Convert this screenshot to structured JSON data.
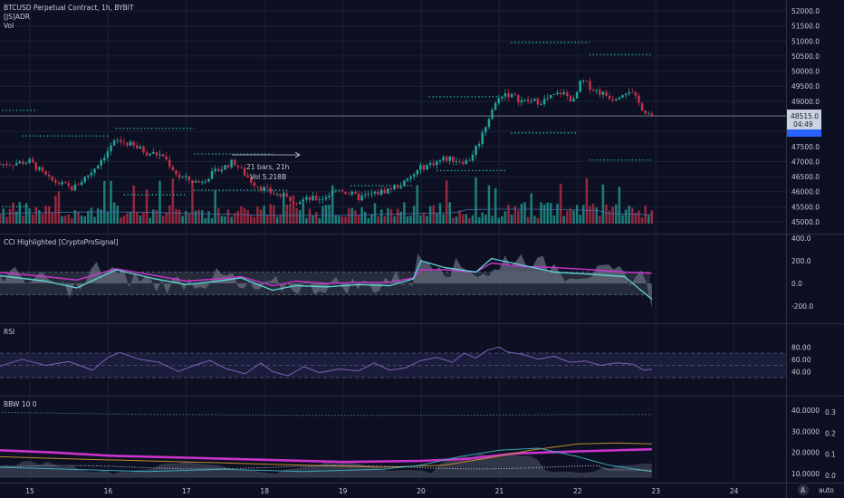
{
  "header": {
    "symbol_line": "BTCUSD Perpetual Contract, 1h, BYBIT",
    "indicator_1": "[JS]ADR",
    "indicator_2": "Vol"
  },
  "colors": {
    "background": "#0c1022",
    "grid": "#1b2233",
    "bull": "#22a39a",
    "bear": "#c0304a",
    "purple": "#cc33cc",
    "cyan": "#5fd1d6",
    "rsi_line": "#7e62b8",
    "adr_dots": "#2bbbb0",
    "price_tag_bg": "#cbd3e0",
    "price_tag_border": "#2962ff"
  },
  "chart_data": [
    {
      "type": "candlestick",
      "name": "BTCUSD Perpetual Contract, 1h, BYBIT",
      "y_ticks": [
        "52000.0",
        "51500.0",
        "51000.0",
        "50500.0",
        "50000.0",
        "49500.0",
        "49000.0",
        "48500.0",
        "48000.0",
        "47500.0",
        "47000.0",
        "46500.0",
        "46000.0",
        "45500.0",
        "45000.0"
      ],
      "ylim": [
        44800,
        52200
      ],
      "x_ticks": [
        "15",
        "16",
        "17",
        "18",
        "19",
        "20",
        "21",
        "22",
        "23",
        "24"
      ],
      "current_price": "48515.0",
      "countdown": "04:49",
      "annotations": [
        "21 bars, 21h",
        "Vol 5.218B"
      ],
      "price_path": [
        {
          "d": 14.6,
          "p": 46900
        },
        {
          "d": 15.0,
          "p": 47000
        },
        {
          "d": 15.25,
          "p": 46400
        },
        {
          "d": 15.55,
          "p": 46100
        },
        {
          "d": 15.8,
          "p": 46700
        },
        {
          "d": 16.1,
          "p": 47700
        },
        {
          "d": 16.25,
          "p": 47600
        },
        {
          "d": 16.5,
          "p": 47300
        },
        {
          "d": 16.7,
          "p": 47200
        },
        {
          "d": 16.9,
          "p": 46500
        },
        {
          "d": 17.15,
          "p": 46300
        },
        {
          "d": 17.4,
          "p": 46700
        },
        {
          "d": 17.6,
          "p": 47000
        },
        {
          "d": 17.85,
          "p": 46300
        },
        {
          "d": 18.05,
          "p": 46000
        },
        {
          "d": 18.4,
          "p": 45700
        },
        {
          "d": 18.75,
          "p": 45800
        },
        {
          "d": 18.95,
          "p": 46100
        },
        {
          "d": 19.2,
          "p": 45800
        },
        {
          "d": 19.5,
          "p": 46000
        },
        {
          "d": 19.8,
          "p": 46300
        },
        {
          "d": 20.0,
          "p": 46800
        },
        {
          "d": 20.3,
          "p": 47100
        },
        {
          "d": 20.6,
          "p": 47000
        },
        {
          "d": 20.75,
          "p": 47700
        },
        {
          "d": 20.9,
          "p": 48700
        },
        {
          "d": 21.05,
          "p": 49300
        },
        {
          "d": 21.3,
          "p": 49000
        },
        {
          "d": 21.55,
          "p": 49000
        },
        {
          "d": 21.8,
          "p": 49300
        },
        {
          "d": 21.95,
          "p": 49000
        },
        {
          "d": 22.05,
          "p": 49700
        },
        {
          "d": 22.2,
          "p": 49400
        },
        {
          "d": 22.45,
          "p": 49100
        },
        {
          "d": 22.65,
          "p": 49400
        },
        {
          "d": 22.85,
          "p": 48700
        },
        {
          "d": 22.95,
          "p": 48515
        }
      ],
      "adr_levels": [
        {
          "d0": 14.6,
          "d1": 15.1,
          "p": 48700
        },
        {
          "d0": 14.9,
          "d1": 16.0,
          "p": 47850
        },
        {
          "d0": 14.6,
          "d1": 15.0,
          "p": 45500
        },
        {
          "d0": 16.1,
          "d1": 17.1,
          "p": 48100
        },
        {
          "d0": 16.2,
          "d1": 17.0,
          "p": 45900
        },
        {
          "d0": 17.1,
          "d1": 18.1,
          "p": 47250
        },
        {
          "d0": 17.1,
          "d1": 18.3,
          "p": 46050
        },
        {
          "d0": 19.1,
          "d1": 19.9,
          "p": 46200
        },
        {
          "d0": 20.1,
          "d1": 21.0,
          "p": 49150
        },
        {
          "d0": 20.2,
          "d1": 21.1,
          "p": 46700
        },
        {
          "d0": 21.15,
          "d1": 22.15,
          "p": 50950
        },
        {
          "d0": 21.15,
          "d1": 22.0,
          "p": 47950
        },
        {
          "d0": 22.15,
          "d1": 22.95,
          "p": 50550
        },
        {
          "d0": 22.15,
          "d1": 22.95,
          "p": 47050
        }
      ]
    },
    {
      "type": "line",
      "name": "CCI Highlighted [CryptoProSignal]",
      "y_ticks": [
        "400.0",
        "200.0",
        "0.0",
        "-200.0"
      ],
      "ylim": [
        -300,
        420
      ],
      "band": [
        -100,
        100
      ],
      "series": [
        {
          "color": "#cc33cc",
          "x": [
            14.6,
            15.2,
            15.6,
            16.1,
            16.6,
            17.0,
            17.4,
            17.7,
            18.1,
            18.4,
            18.8,
            19.2,
            19.6,
            19.9,
            20.0,
            20.3,
            20.7,
            20.9,
            21.3,
            21.7,
            22.2,
            22.6,
            22.95
          ],
          "y": [
            100,
            60,
            30,
            130,
            70,
            20,
            40,
            60,
            -20,
            20,
            0,
            10,
            10,
            50,
            120,
            120,
            100,
            180,
            150,
            140,
            120,
            100,
            90
          ]
        },
        {
          "color": "#5fd1d6",
          "x": [
            14.6,
            15.2,
            15.6,
            16.1,
            16.6,
            17.0,
            17.4,
            17.7,
            18.1,
            18.4,
            18.8,
            19.2,
            19.6,
            19.9,
            20.0,
            20.3,
            20.7,
            20.9,
            21.3,
            21.7,
            22.2,
            22.6,
            22.95
          ],
          "y": [
            70,
            20,
            -40,
            120,
            40,
            -10,
            20,
            50,
            -60,
            -20,
            -30,
            -10,
            -20,
            40,
            200,
            140,
            100,
            220,
            160,
            100,
            80,
            60,
            -140
          ]
        }
      ]
    },
    {
      "type": "line",
      "name": "RSI",
      "y_ticks": [
        "80.00",
        "60.00",
        "40.00"
      ],
      "ylim": [
        28,
        84
      ],
      "band": [
        30,
        70
      ],
      "mid": 50,
      "series": [
        {
          "color": "#7e62b8",
          "x": [
            14.6,
            14.9,
            15.2,
            15.5,
            15.8,
            16.0,
            16.15,
            16.4,
            16.65,
            16.9,
            17.1,
            17.3,
            17.5,
            17.75,
            17.95,
            18.1,
            18.3,
            18.5,
            18.7,
            18.95,
            19.2,
            19.4,
            19.6,
            19.8,
            20.0,
            20.2,
            20.4,
            20.55,
            20.7,
            20.85,
            21.0,
            21.1,
            21.3,
            21.5,
            21.7,
            21.9,
            22.1,
            22.3,
            22.5,
            22.7,
            22.85,
            22.95
          ],
          "y": [
            48,
            60,
            50,
            56,
            42,
            63,
            71,
            60,
            55,
            40,
            50,
            58,
            45,
            36,
            54,
            40,
            33,
            48,
            38,
            44,
            41,
            54,
            42,
            46,
            58,
            63,
            55,
            70,
            62,
            75,
            80,
            72,
            68,
            60,
            65,
            55,
            57,
            50,
            54,
            52,
            42,
            44
          ]
        }
      ]
    },
    {
      "type": "line",
      "name": "BBW 10 0",
      "y_ticks_left": [
        "40.0000",
        "30.0000",
        "20.0000",
        "10.0000"
      ],
      "y_ticks_right": [
        "0.3",
        "0.2",
        "0.1",
        "0.0"
      ],
      "ylim": [
        7,
        44
      ],
      "series": [
        {
          "color": "#cc33cc",
          "x": [
            14.6,
            15.3,
            16.0,
            17.0,
            18.0,
            19.0,
            20.0,
            20.6,
            21.2,
            22.0,
            22.95
          ],
          "y": [
            21,
            20,
            18.5,
            17.5,
            16.5,
            15.5,
            16,
            17,
            19.5,
            20.5,
            21.5
          ]
        },
        {
          "color": "#c28b2e",
          "x": [
            14.6,
            15.5,
            16.5,
            17.5,
            18.5,
            19.5,
            20.3,
            20.8,
            21.4,
            22.0,
            22.5,
            22.95
          ],
          "y": [
            18,
            17,
            16,
            15,
            14,
            13,
            14,
            17,
            21,
            24,
            24.5,
            24
          ]
        },
        {
          "color": "#3aa9b4",
          "x": [
            14.6,
            15.5,
            16.5,
            17.5,
            18.5,
            19.5,
            20.0,
            20.5,
            21.0,
            21.5,
            22.0,
            22.4,
            22.95
          ],
          "y": [
            13,
            12,
            11,
            12,
            11,
            12,
            14,
            18,
            21,
            22,
            18,
            14,
            11
          ]
        },
        {
          "color": "#4f6f9a",
          "x": [
            14.6,
            15.5,
            16.5,
            17.5,
            18.5,
            19.5,
            20.5,
            21.5,
            22.95
          ],
          "y": [
            39,
            38.5,
            38,
            37.8,
            37.5,
            37.5,
            37.6,
            37.8,
            38
          ]
        }
      ]
    }
  ],
  "panes": {
    "cci_title": "CCI Highlighted [CryptoProSignal]",
    "rsi_title": "RSI",
    "bbw_title": "BBW 10 0"
  },
  "buttons": {
    "log": "A",
    "auto": "auto"
  }
}
